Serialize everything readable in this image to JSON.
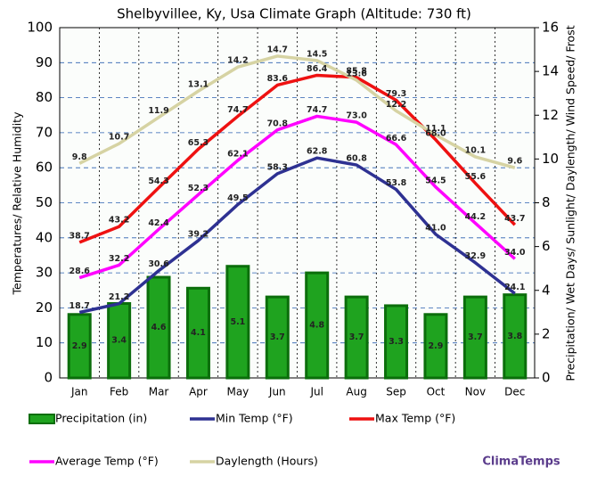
{
  "chart_data": {
    "type": "combo",
    "title": "Shelbyvillee, Ky, Usa Climate Graph (Altitude: 730 ft)",
    "y_label": "Temperatures/ Relative Humidity",
    "y2_label": "Precipitation/ Wet Days/ Sunlight/ Daylength/ Wind Speed/ Frost",
    "watermark": "ClimaTemps",
    "categories": [
      "Jan",
      "Feb",
      "Mar",
      "Apr",
      "May",
      "Jun",
      "Jul",
      "Aug",
      "Sep",
      "Oct",
      "Nov",
      "Dec"
    ],
    "ylim": [
      0,
      100
    ],
    "yticks": [
      0,
      10,
      20,
      30,
      40,
      50,
      60,
      70,
      80,
      90,
      100
    ],
    "y2lim": [
      0,
      16
    ],
    "y2ticks": [
      0,
      2,
      4,
      6,
      8,
      10,
      12,
      14,
      16
    ],
    "grid": true,
    "series": [
      {
        "name": "Precipitation (in)",
        "type": "bar",
        "axis": "y2",
        "color": "#1fa31f",
        "values": [
          2.9,
          3.4,
          4.6,
          4.1,
          5.1,
          3.7,
          4.8,
          3.7,
          3.3,
          2.9,
          3.7,
          3.8
        ]
      },
      {
        "name": "Min Temp (°F)",
        "type": "line",
        "color": "#2e3192",
        "values": [
          18.7,
          21.2,
          30.6,
          39.2,
          49.5,
          58.3,
          62.8,
          60.8,
          53.8,
          41.0,
          32.9,
          24.1
        ],
        "value_labels": [
          "18.7",
          "21.2",
          "30.6",
          "39.2",
          "49.5",
          "58.3",
          "62.8",
          "60.8",
          "53.8",
          "41.0",
          "32.9",
          "24.1"
        ]
      },
      {
        "name": "Max Temp (°F)",
        "type": "line",
        "color": "#ee1111",
        "values": [
          38.7,
          43.2,
          54.3,
          65.3,
          74.7,
          83.6,
          86.4,
          85.8,
          79.3,
          68.0,
          55.6,
          43.7
        ],
        "value_labels": [
          "38.7",
          "43.2",
          "54.3",
          "65.3",
          "74.7",
          "83.6",
          "86.4",
          "85.8",
          "79.3",
          "68.0",
          "55.6",
          "43.7"
        ]
      },
      {
        "name": "Average Temp (°F)",
        "type": "line",
        "color": "#ff00ff",
        "values": [
          28.6,
          32.2,
          42.4,
          52.3,
          62.1,
          70.8,
          74.7,
          73.0,
          66.6,
          54.5,
          44.2,
          34.0
        ],
        "value_labels": [
          "28.6",
          "32.2",
          "42.4",
          "52.3",
          "62.1",
          "70.8",
          "74.7",
          "73.0",
          "66.6",
          "54.5",
          "44.2",
          "34.0"
        ]
      },
      {
        "name": "Daylength (Hours)",
        "type": "line",
        "axis": "y2",
        "color": "#d6d3a3",
        "values": [
          9.8,
          10.7,
          11.9,
          13.1,
          14.2,
          14.7,
          14.5,
          13.6,
          12.2,
          11.1,
          10.1,
          9.6
        ]
      }
    ]
  }
}
